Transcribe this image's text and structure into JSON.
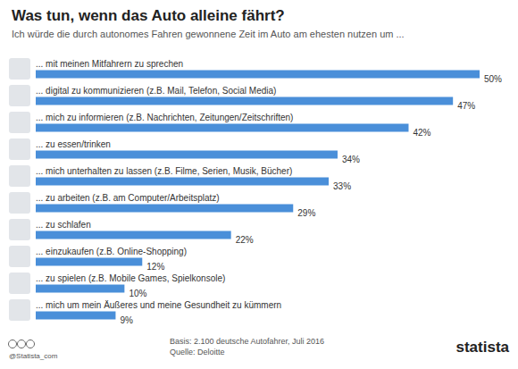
{
  "chart_data": {
    "type": "bar",
    "orientation": "horizontal",
    "title": "Was tun, wenn das Auto alleine fährt?",
    "subtitle": "Ich würde die durch autonomes Fahren gewonnene Zeit im Auto am ehesten nutzen um ...",
    "categories": [
      "... mit meinen Mitfahrern zu sprechen",
      "... digital zu kommunizieren (z.B. Mail, Telefon, Social Media)",
      "... mich zu informieren (z.B. Nachrichten, Zeitungen/Zeitschriften)",
      "... zu essen/trinken",
      "... mich unterhalten zu lassen (z.B. Filme, Serien, Musik, Bücher)",
      "... zu arbeiten (z.B. am Computer/Arbeitsplatz)",
      "... zu schlafen",
      "... einzukaufen (z.B. Online-Shopping)",
      "... zu spielen (z.B. Mobile Games, Spielkonsole)",
      "... mich um mein Äußeres und meine Gesundheit zu kümmern"
    ],
    "values": [
      50,
      47,
      42,
      34,
      33,
      29,
      22,
      12,
      10,
      9
    ],
    "value_labels": [
      "50%",
      "47%",
      "42%",
      "34%",
      "33%",
      "29%",
      "22%",
      "12%",
      "10%",
      "9%"
    ],
    "color": "#4a8fd9",
    "xlim": [
      0,
      50
    ],
    "data_labels": true,
    "tick_labels": false,
    "grid": false,
    "annotations": [
      "Basis: 2.100 deutsche Autofahrer, Juli 2016",
      "Quelle: Deloitte",
      "@Statista_com",
      "statista"
    ]
  }
}
